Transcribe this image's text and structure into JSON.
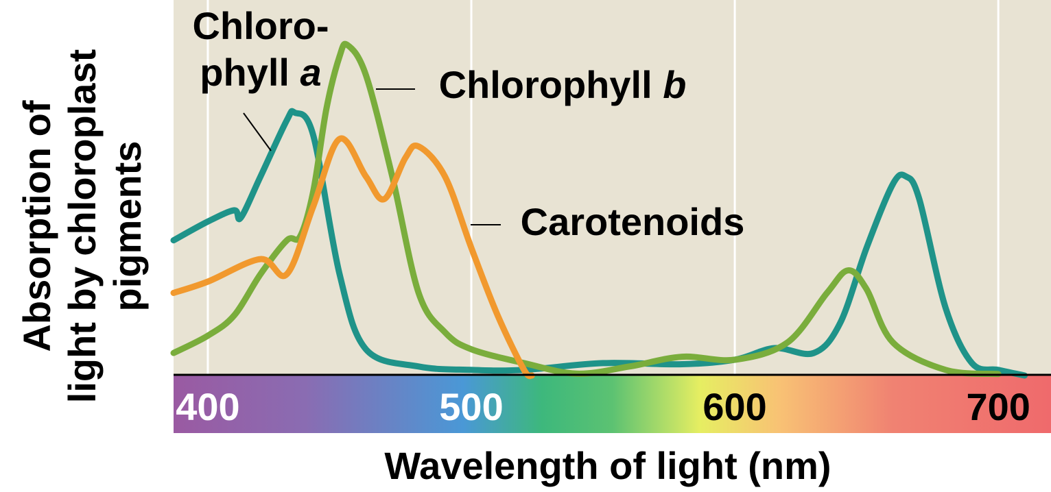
{
  "chart_data": {
    "type": "line",
    "x_label": "Wavelength of light (nm)",
    "y_label_lines": [
      "Absorption of",
      "light by chloroplast",
      "pigments"
    ],
    "xlim": [
      387,
      720
    ],
    "ylim": [
      0,
      100
    ],
    "xticks": [
      400,
      500,
      600,
      700
    ],
    "xtick_colors": [
      "#ffffff",
      "#ffffff",
      "#000000",
      "#000000"
    ],
    "grid": true,
    "series": [
      {
        "label_lines": [
          "Chloro-",
          "phyll a"
        ],
        "color": "#1f9389",
        "x": [
          387,
          400,
          410,
          412.5,
          420,
          430,
          433,
          440,
          450,
          460,
          480,
          500,
          520,
          550,
          580,
          600,
          615,
          630,
          640,
          650,
          660,
          665,
          670,
          680,
          690,
          700,
          710
        ],
        "values": [
          36,
          41,
          44,
          42,
          53,
          68,
          70,
          64,
          27,
          7,
          2.4,
          1.5,
          1.5,
          3.3,
          3,
          4.2,
          7.3,
          6,
          14,
          34,
          51,
          53,
          47,
          18,
          3.3,
          1.5,
          0
        ]
      },
      {
        "label_lines": [
          "Chlorophyll b"
        ],
        "color": "#7aad3c",
        "x": [
          387,
          400,
          410,
          420,
          430,
          435,
          440,
          445,
          450,
          453,
          460,
          470,
          480,
          490,
          500,
          520,
          540,
          560,
          580,
          600,
          620,
          635,
          643,
          650,
          660,
          680,
          700
        ],
        "values": [
          6,
          10.6,
          16,
          27,
          36,
          37,
          49,
          71,
          85,
          88,
          80,
          53,
          22,
          11.5,
          7,
          3.3,
          0.5,
          2.4,
          5,
          4.2,
          8.8,
          22,
          28,
          23,
          8.8,
          1.5,
          0.4
        ]
      },
      {
        "label_lines": [
          "Carotenoids"
        ],
        "color": "#f1992e",
        "x": [
          387,
          400,
          420,
          430,
          440,
          450,
          460,
          467,
          475,
          480,
          490,
          500,
          510,
          520,
          523
        ],
        "values": [
          22,
          25,
          31,
          27,
          45,
          63,
          53,
          47,
          58,
          61,
          53,
          34,
          16,
          1.5,
          0
        ]
      }
    ]
  }
}
